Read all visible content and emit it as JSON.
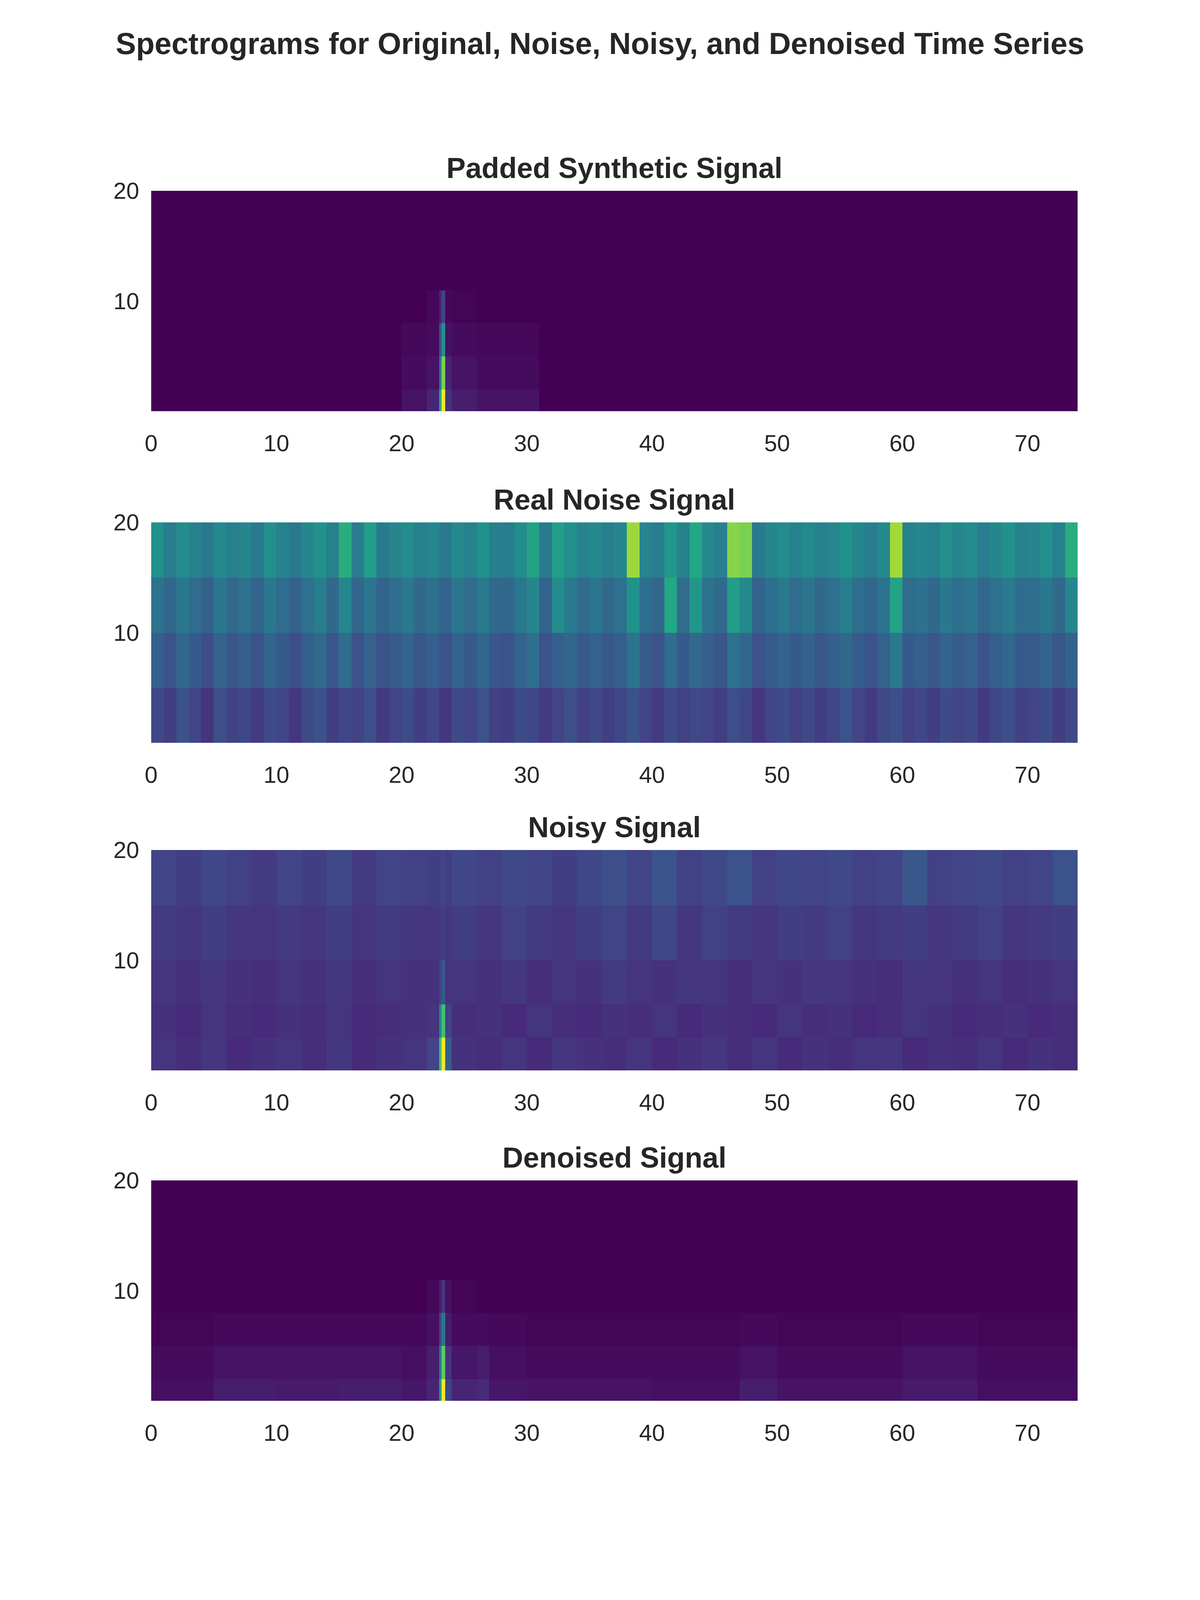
{
  "title": "Spectrograms for Original, Noise, Noisy, and Denoised Time Series",
  "chart_data": [
    {
      "type": "heatmap",
      "title": "Padded Synthetic Signal",
      "xlim": [
        0,
        74
      ],
      "xticks": [
        0,
        10,
        20,
        30,
        40,
        50,
        60,
        70
      ],
      "ylim": [
        0,
        20
      ],
      "yticks": [
        10,
        20
      ],
      "color_range": [
        0,
        1
      ],
      "x_edges": [
        0,
        20,
        22,
        23,
        23.2,
        23.5,
        24,
        26,
        31,
        74
      ],
      "y_edges": [
        0,
        2,
        5,
        8,
        11,
        20
      ],
      "cells": [
        [
          0,
          0.05,
          0.1,
          0.6,
          1.0,
          0.15,
          0.08,
          0.05,
          0
        ],
        [
          0,
          0.03,
          0.05,
          0.4,
          0.8,
          0.1,
          0.05,
          0.03,
          0
        ],
        [
          0,
          0.02,
          0.03,
          0.25,
          0.5,
          0.05,
          0.03,
          0.02,
          0
        ],
        [
          0,
          0,
          0.02,
          0.1,
          0.2,
          0.02,
          0.01,
          0,
          0
        ],
        [
          0,
          0,
          0,
          0,
          0,
          0,
          0,
          0,
          0
        ]
      ]
    },
    {
      "type": "heatmap",
      "title": "Real Noise Signal",
      "xlim": [
        0,
        74
      ],
      "xticks": [
        0,
        10,
        20,
        30,
        40,
        50,
        60,
        70
      ],
      "ylim": [
        0,
        20
      ],
      "yticks": [
        10,
        20
      ],
      "color_range": [
        0,
        1
      ],
      "x_edges": [
        0,
        1,
        2,
        3,
        4,
        5,
        6,
        7,
        8,
        9,
        10,
        11,
        12,
        13,
        14,
        15,
        16,
        17,
        18,
        19,
        20,
        21,
        22,
        23,
        24,
        25,
        26,
        27,
        28,
        29,
        30,
        31,
        32,
        33,
        34,
        35,
        36,
        37,
        38,
        39,
        40,
        41,
        42,
        43,
        44,
        45,
        46,
        47,
        48,
        49,
        50,
        51,
        52,
        53,
        54,
        55,
        56,
        57,
        58,
        59,
        60,
        61,
        62,
        63,
        64,
        65,
        66,
        67,
        68,
        69,
        70,
        71,
        72,
        73,
        74
      ],
      "y_edges": [
        0,
        5,
        10,
        15,
        20
      ],
      "cells": [
        [
          0.22,
          0.18,
          0.25,
          0.2,
          0.15,
          0.24,
          0.19,
          0.21,
          0.17,
          0.23,
          0.2,
          0.16,
          0.22,
          0.25,
          0.18,
          0.21,
          0.19,
          0.24,
          0.17,
          0.2,
          0.23,
          0.18,
          0.21,
          0.16,
          0.22,
          0.2,
          0.25,
          0.19,
          0.18,
          0.23,
          0.21,
          0.17,
          0.2,
          0.24,
          0.19,
          0.22,
          0.18,
          0.21,
          0.25,
          0.2,
          0.17,
          0.23,
          0.19,
          0.22,
          0.2,
          0.18,
          0.24,
          0.21,
          0.16,
          0.2,
          0.23,
          0.19,
          0.22,
          0.18,
          0.21,
          0.25,
          0.2,
          0.17,
          0.22,
          0.24,
          0.19,
          0.21,
          0.18,
          0.23,
          0.2,
          0.22,
          0.17,
          0.21,
          0.24,
          0.19,
          0.2,
          0.23,
          0.18,
          0.22
        ],
        [
          0.3,
          0.26,
          0.33,
          0.28,
          0.24,
          0.31,
          0.27,
          0.3,
          0.25,
          0.32,
          0.28,
          0.24,
          0.3,
          0.34,
          0.27,
          0.35,
          0.26,
          0.31,
          0.25,
          0.29,
          0.32,
          0.27,
          0.3,
          0.25,
          0.31,
          0.28,
          0.33,
          0.27,
          0.26,
          0.32,
          0.36,
          0.25,
          0.3,
          0.33,
          0.28,
          0.31,
          0.27,
          0.3,
          0.38,
          0.29,
          0.26,
          0.35,
          0.28,
          0.34,
          0.3,
          0.27,
          0.37,
          0.33,
          0.25,
          0.29,
          0.32,
          0.28,
          0.31,
          0.27,
          0.3,
          0.34,
          0.29,
          0.26,
          0.31,
          0.4,
          0.28,
          0.3,
          0.27,
          0.32,
          0.29,
          0.31,
          0.26,
          0.3,
          0.33,
          0.28,
          0.29,
          0.32,
          0.27,
          0.31
        ],
        [
          0.38,
          0.33,
          0.4,
          0.35,
          0.31,
          0.39,
          0.34,
          0.37,
          0.32,
          0.4,
          0.35,
          0.31,
          0.37,
          0.42,
          0.34,
          0.45,
          0.33,
          0.39,
          0.32,
          0.36,
          0.4,
          0.34,
          0.37,
          0.32,
          0.39,
          0.35,
          0.41,
          0.34,
          0.33,
          0.4,
          0.46,
          0.32,
          0.48,
          0.41,
          0.35,
          0.39,
          0.34,
          0.37,
          0.5,
          0.36,
          0.33,
          0.6,
          0.35,
          0.52,
          0.38,
          0.34,
          0.55,
          0.47,
          0.32,
          0.36,
          0.4,
          0.35,
          0.39,
          0.34,
          0.37,
          0.42,
          0.36,
          0.33,
          0.38,
          0.58,
          0.35,
          0.37,
          0.34,
          0.4,
          0.36,
          0.39,
          0.33,
          0.37,
          0.41,
          0.35,
          0.36,
          0.4,
          0.34,
          0.45
        ],
        [
          0.5,
          0.42,
          0.48,
          0.44,
          0.4,
          0.47,
          0.43,
          0.46,
          0.41,
          0.49,
          0.44,
          0.4,
          0.46,
          0.5,
          0.43,
          0.62,
          0.42,
          0.55,
          0.41,
          0.45,
          0.48,
          0.43,
          0.46,
          0.41,
          0.47,
          0.44,
          0.5,
          0.43,
          0.42,
          0.48,
          0.58,
          0.41,
          0.56,
          0.49,
          0.44,
          0.47,
          0.43,
          0.46,
          0.85,
          0.45,
          0.42,
          0.52,
          0.44,
          0.6,
          0.47,
          0.43,
          0.82,
          0.8,
          0.41,
          0.45,
          0.48,
          0.44,
          0.47,
          0.43,
          0.46,
          0.5,
          0.45,
          0.42,
          0.47,
          0.86,
          0.44,
          0.46,
          0.43,
          0.49,
          0.45,
          0.48,
          0.42,
          0.46,
          0.5,
          0.44,
          0.45,
          0.49,
          0.43,
          0.62
        ]
      ]
    },
    {
      "type": "heatmap",
      "title": "Noisy Signal",
      "xlim": [
        0,
        74
      ],
      "xticks": [
        0,
        10,
        20,
        30,
        40,
        50,
        60,
        70
      ],
      "ylim": [
        0,
        20
      ],
      "yticks": [
        10,
        20
      ],
      "color_range": [
        0,
        1
      ],
      "x_edges": [
        0,
        2,
        4,
        6,
        8,
        10,
        12,
        14,
        16,
        18,
        20,
        22,
        23,
        23.2,
        23.5,
        24,
        26,
        28,
        30,
        32,
        34,
        36,
        38,
        40,
        42,
        44,
        46,
        48,
        50,
        52,
        54,
        56,
        58,
        60,
        62,
        64,
        66,
        68,
        70,
        72,
        74
      ],
      "y_edges": [
        0,
        3,
        6,
        10,
        15,
        20
      ],
      "cells": [
        [
          0.15,
          0.13,
          0.16,
          0.12,
          0.14,
          0.15,
          0.13,
          0.16,
          0.12,
          0.14,
          0.15,
          0.2,
          0.7,
          1.0,
          0.3,
          0.14,
          0.13,
          0.15,
          0.12,
          0.16,
          0.14,
          0.13,
          0.15,
          0.12,
          0.14,
          0.16,
          0.13,
          0.15,
          0.12,
          0.14,
          0.13,
          0.15,
          0.16,
          0.12,
          0.14,
          0.13,
          0.15,
          0.12,
          0.14,
          0.13
        ],
        [
          0.14,
          0.12,
          0.15,
          0.13,
          0.12,
          0.14,
          0.13,
          0.15,
          0.12,
          0.13,
          0.14,
          0.15,
          0.45,
          0.7,
          0.2,
          0.13,
          0.14,
          0.12,
          0.15,
          0.13,
          0.12,
          0.14,
          0.13,
          0.15,
          0.12,
          0.14,
          0.13,
          0.12,
          0.15,
          0.13,
          0.14,
          0.12,
          0.13,
          0.15,
          0.14,
          0.12,
          0.13,
          0.14,
          0.12,
          0.13
        ],
        [
          0.15,
          0.14,
          0.16,
          0.14,
          0.13,
          0.15,
          0.14,
          0.16,
          0.13,
          0.15,
          0.14,
          0.14,
          0.2,
          0.28,
          0.15,
          0.15,
          0.14,
          0.16,
          0.13,
          0.15,
          0.14,
          0.17,
          0.15,
          0.14,
          0.16,
          0.15,
          0.13,
          0.15,
          0.14,
          0.16,
          0.15,
          0.14,
          0.13,
          0.16,
          0.15,
          0.14,
          0.15,
          0.13,
          0.14,
          0.15
        ],
        [
          0.17,
          0.16,
          0.18,
          0.16,
          0.15,
          0.17,
          0.16,
          0.18,
          0.15,
          0.17,
          0.16,
          0.16,
          0.17,
          0.18,
          0.16,
          0.18,
          0.16,
          0.19,
          0.17,
          0.16,
          0.18,
          0.2,
          0.17,
          0.21,
          0.16,
          0.19,
          0.17,
          0.16,
          0.18,
          0.17,
          0.19,
          0.16,
          0.17,
          0.18,
          0.16,
          0.17,
          0.19,
          0.16,
          0.17,
          0.18
        ],
        [
          0.2,
          0.18,
          0.21,
          0.19,
          0.17,
          0.2,
          0.18,
          0.22,
          0.17,
          0.2,
          0.19,
          0.18,
          0.19,
          0.2,
          0.18,
          0.21,
          0.19,
          0.22,
          0.2,
          0.18,
          0.21,
          0.24,
          0.2,
          0.26,
          0.19,
          0.22,
          0.25,
          0.19,
          0.21,
          0.2,
          0.22,
          0.19,
          0.2,
          0.27,
          0.19,
          0.2,
          0.22,
          0.19,
          0.2,
          0.25
        ]
      ]
    },
    {
      "type": "heatmap",
      "title": "Denoised Signal",
      "xlim": [
        0,
        74
      ],
      "xticks": [
        0,
        10,
        20,
        30,
        40,
        50,
        60,
        70
      ],
      "ylim": [
        0,
        20
      ],
      "yticks": [
        10,
        20
      ],
      "color_range": [
        0,
        1
      ],
      "x_edges": [
        0,
        5,
        10,
        15,
        20,
        22,
        23,
        23.2,
        23.5,
        24,
        26,
        27,
        30,
        40,
        47,
        50,
        60,
        66,
        74
      ],
      "y_edges": [
        0,
        2,
        5,
        8,
        11,
        20
      ],
      "cells": [
        [
          0.04,
          0.08,
          0.07,
          0.08,
          0.06,
          0.1,
          0.55,
          1.0,
          0.2,
          0.1,
          0.12,
          0.06,
          0.05,
          0.04,
          0.08,
          0.05,
          0.07,
          0.04
        ],
        [
          0.03,
          0.05,
          0.05,
          0.05,
          0.04,
          0.08,
          0.4,
          0.75,
          0.15,
          0.06,
          0.08,
          0.04,
          0.03,
          0.03,
          0.05,
          0.03,
          0.05,
          0.03
        ],
        [
          0.01,
          0.02,
          0.02,
          0.02,
          0.02,
          0.04,
          0.2,
          0.4,
          0.08,
          0.03,
          0.03,
          0.02,
          0.01,
          0.01,
          0.02,
          0.01,
          0.02,
          0.01
        ],
        [
          0,
          0,
          0,
          0,
          0,
          0.02,
          0.08,
          0.15,
          0.04,
          0.01,
          0,
          0,
          0,
          0,
          0,
          0,
          0,
          0
        ],
        [
          0,
          0,
          0,
          0,
          0,
          0,
          0,
          0,
          0,
          0,
          0,
          0,
          0,
          0,
          0,
          0,
          0,
          0
        ]
      ]
    }
  ]
}
